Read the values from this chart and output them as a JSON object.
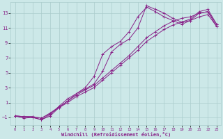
{
  "bg_color": "#cce8e8",
  "grid_color": "#aacccc",
  "line_color": "#882288",
  "xlabel": "Windchill (Refroidissement éolien,°C)",
  "xlim": [
    -0.5,
    23.5
  ],
  "ylim": [
    -2.0,
    14.5
  ],
  "xticks": [
    0,
    1,
    2,
    3,
    4,
    5,
    6,
    7,
    8,
    9,
    10,
    11,
    12,
    13,
    14,
    15,
    16,
    17,
    18,
    19,
    20,
    21,
    22,
    23
  ],
  "yticks": [
    -1,
    1,
    3,
    5,
    7,
    9,
    11,
    13
  ],
  "line_straight1_x": [
    0,
    1,
    2,
    3,
    4,
    5,
    6,
    7,
    8,
    9,
    10,
    11,
    12,
    13,
    14,
    15,
    16,
    17,
    18,
    19,
    20,
    21,
    22,
    23
  ],
  "line_straight1_y": [
    -0.8,
    -0.9,
    -0.9,
    -1.1,
    -0.5,
    0.3,
    1.0,
    1.8,
    2.4,
    3.0,
    4.0,
    5.0,
    6.0,
    7.0,
    8.0,
    9.2,
    10.0,
    10.8,
    11.4,
    11.8,
    12.0,
    12.5,
    12.8,
    11.2
  ],
  "line_straight2_x": [
    0,
    1,
    2,
    3,
    4,
    5,
    6,
    7,
    8,
    9,
    10,
    11,
    12,
    13,
    14,
    15,
    16,
    17,
    18,
    19,
    20,
    21,
    22,
    23
  ],
  "line_straight2_y": [
    -0.8,
    -0.9,
    -0.9,
    -1.1,
    -0.4,
    0.4,
    1.2,
    2.0,
    2.7,
    3.3,
    4.3,
    5.3,
    6.3,
    7.3,
    8.5,
    9.7,
    10.5,
    11.3,
    11.9,
    12.3,
    12.5,
    13.0,
    13.2,
    11.5
  ],
  "line_spike1_x": [
    0,
    1,
    2,
    3,
    4,
    5,
    6,
    7,
    8,
    9,
    10,
    11,
    12,
    13,
    14,
    15,
    16,
    17,
    18,
    19,
    20,
    21,
    22,
    23
  ],
  "line_spike1_y": [
    -0.8,
    -1.1,
    -1.0,
    -1.3,
    -0.8,
    0.3,
    1.2,
    2.2,
    3.0,
    4.5,
    7.5,
    8.5,
    9.2,
    10.5,
    12.5,
    13.8,
    13.2,
    12.5,
    12.0,
    11.5,
    12.0,
    13.0,
    13.2,
    11.2
  ],
  "line_spike2_x": [
    0,
    2,
    3,
    4,
    5,
    6,
    7,
    8,
    9,
    10,
    11,
    12,
    13,
    14,
    15,
    16,
    17,
    18,
    19,
    20,
    21,
    22,
    23
  ],
  "line_spike2_y": [
    -0.8,
    -1.0,
    -1.3,
    -0.6,
    0.5,
    1.5,
    2.2,
    2.8,
    3.5,
    5.2,
    7.8,
    8.8,
    9.5,
    11.0,
    14.0,
    13.5,
    13.0,
    12.3,
    11.8,
    12.2,
    13.2,
    13.5,
    11.5
  ]
}
